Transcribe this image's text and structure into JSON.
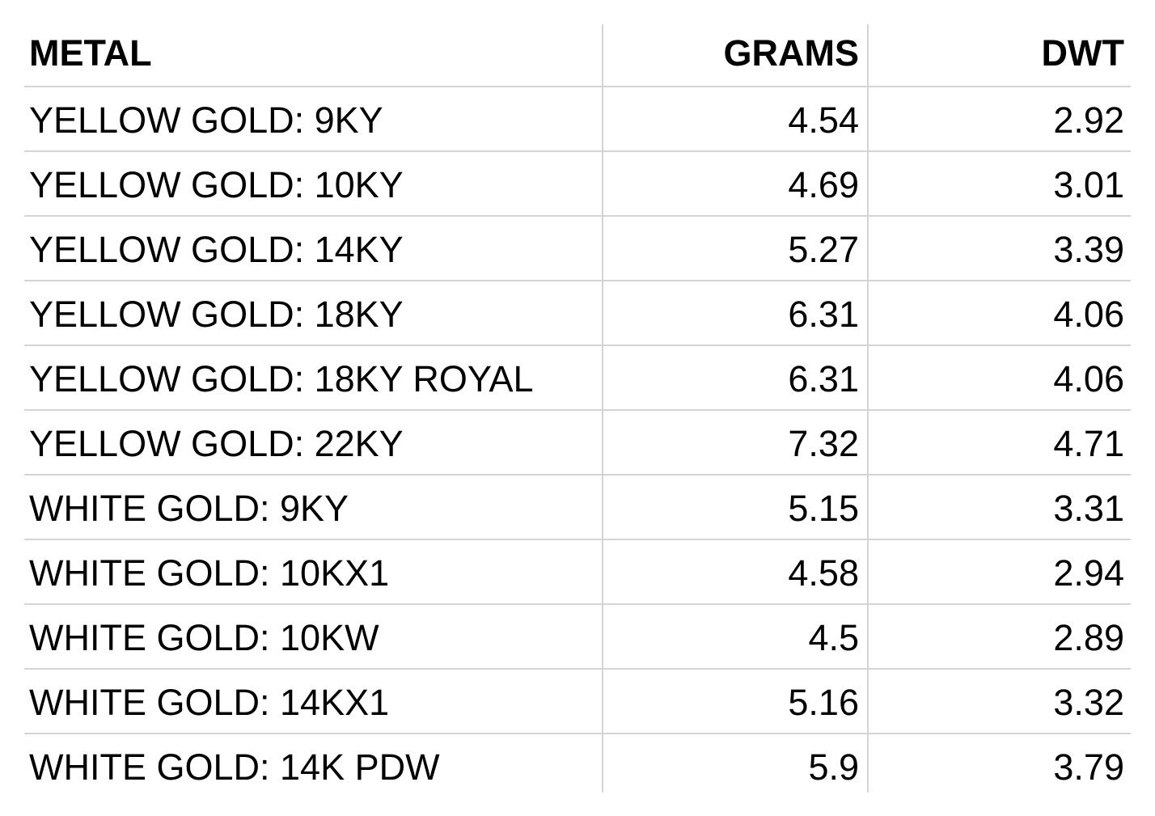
{
  "table": {
    "header": [
      "METAL",
      "GRAMS",
      "DWT"
    ],
    "rows": [
      [
        "YELLOW GOLD: 9KY",
        4.54,
        2.92
      ],
      [
        "YELLOW GOLD: 10KY",
        4.69,
        3.01
      ],
      [
        "YELLOW GOLD: 14KY",
        5.27,
        3.39
      ],
      [
        "YELLOW GOLD: 18KY",
        6.31,
        4.06
      ],
      [
        "YELLOW GOLD: 18KY ROYAL",
        6.31,
        4.06
      ],
      [
        "YELLOW GOLD: 22KY",
        7.32,
        4.71
      ],
      [
        "WHITE GOLD: 9KY",
        5.15,
        3.31
      ],
      [
        "WHITE GOLD: 10KX1",
        4.58,
        2.94
      ],
      [
        "WHITE GOLD: 10KW",
        4.5,
        2.89
      ],
      [
        "WHITE GOLD: 14KX1",
        5.16,
        3.32
      ],
      [
        "WHITE GOLD: 14K PDW",
        5.9,
        3.79
      ]
    ]
  }
}
